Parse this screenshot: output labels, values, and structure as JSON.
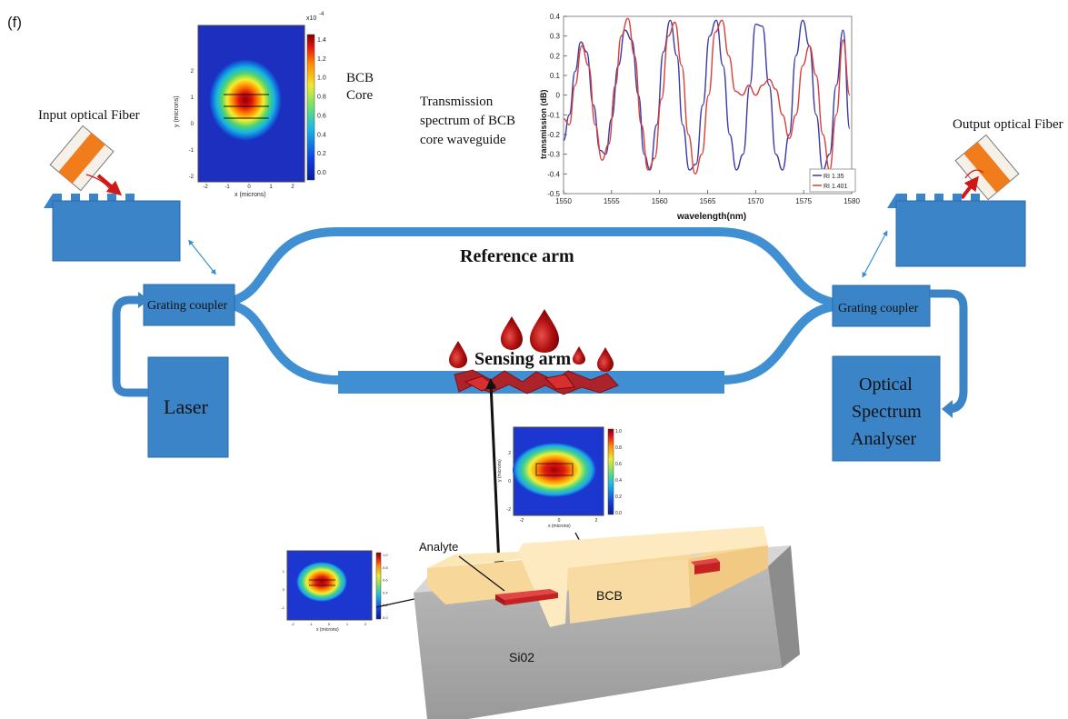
{
  "panel_label": "(f)",
  "labels": {
    "input_fiber": "Input optical Fiber",
    "output_fiber": "Output optical Fiber",
    "bcb_core": [
      "BCB",
      "Core"
    ],
    "spectrum_caption": [
      "Transmission",
      "spectrum of BCB",
      "core waveguide"
    ],
    "reference_arm": "Reference arm",
    "sensing_arm": "Sensing arm",
    "grating_left": "Grating coupler",
    "grating_right": "Grating coupler",
    "laser": "Laser",
    "osa": [
      "Optical",
      "Spectrum",
      "Analyser"
    ],
    "analyte": "Analyte",
    "bcb": "BCB",
    "sio2": "Si02"
  },
  "mode_plot_top": {
    "xlabel": "x (microns)",
    "ylabel": "y (microns)",
    "xticks": [
      "-2",
      "-1",
      "0",
      "1",
      "2"
    ],
    "yticks": [
      "2",
      "1",
      "0",
      "-1",
      "-2"
    ],
    "colorbar_exponent": "x10",
    "colorbar_power": "-4",
    "colorbar_ticks": [
      "1.4",
      "1.2",
      "1.0",
      "0.8",
      "0.6",
      "0.4",
      "0.2",
      "0.0"
    ]
  },
  "mode_plot_mid": {
    "xlabel": "x (microns)",
    "ylabel": "y (microns)",
    "xticks": [
      "-2",
      "0",
      "2"
    ],
    "yticks": [
      "2",
      "0",
      "-2"
    ],
    "colorbar_ticks": [
      "1.0",
      "0.8",
      "0.6",
      "0.4",
      "0.2",
      "0.0"
    ]
  },
  "mode_plot_small": {
    "xlabel": "x (microns)",
    "xticks": [
      "-2",
      "-1",
      "0",
      "1",
      "2"
    ],
    "yticks": [
      "1",
      "0",
      "-1"
    ],
    "colorbar_ticks": [
      "1.0",
      "0.8",
      "0.6",
      "0.4",
      "0.2",
      "0.0"
    ]
  },
  "chart_data": {
    "type": "line",
    "title": "",
    "xlabel": "wavelength(nm)",
    "ylabel": "transmission (dB)",
    "xlim": [
      1550,
      1580
    ],
    "ylim": [
      -0.5,
      0.4
    ],
    "xticks": [
      1550,
      1555,
      1560,
      1565,
      1570,
      1575,
      1580
    ],
    "yticks": [
      0.4,
      0.3,
      0.2,
      0.1,
      0,
      -0.1,
      -0.2,
      -0.3,
      -0.4,
      -0.5
    ],
    "grid": false,
    "legend_position": "bottom-right",
    "series": [
      {
        "name": "RI 1.35",
        "color": "#3a3aa8",
        "x": [
          1550,
          1550.6,
          1551.2,
          1551.8,
          1552.4,
          1553.1,
          1553.8,
          1554.4,
          1555.0,
          1555.7,
          1556.4,
          1557.1,
          1557.8,
          1558.4,
          1559.0,
          1559.7,
          1560.4,
          1561.1,
          1561.8,
          1562.4,
          1563.1,
          1563.8,
          1564.5,
          1565.2,
          1565.9,
          1566.6,
          1567.3,
          1568.0,
          1568.7,
          1569.4,
          1570.0,
          1570.7,
          1571.4,
          1572.1,
          1572.8,
          1573.5,
          1574.2,
          1574.9,
          1575.6,
          1576.3,
          1577.0,
          1577.7,
          1578.4,
          1579.1,
          1579.8
        ],
        "y": [
          -0.23,
          -0.1,
          0.12,
          0.27,
          0.22,
          -0.05,
          -0.28,
          -0.3,
          -0.12,
          0.15,
          0.33,
          0.28,
          0.0,
          -0.3,
          -0.38,
          -0.15,
          0.22,
          0.38,
          0.2,
          -0.15,
          -0.38,
          -0.35,
          -0.05,
          0.3,
          0.38,
          0.15,
          -0.2,
          -0.38,
          -0.3,
          0.05,
          0.36,
          0.35,
          0.05,
          -0.3,
          -0.38,
          -0.2,
          0.2,
          0.38,
          0.25,
          -0.1,
          -0.38,
          -0.3,
          0.05,
          0.33,
          -0.17
        ]
      },
      {
        "name": "RI 1.401",
        "color": "#d8403a",
        "x": [
          1550,
          1550.6,
          1551.2,
          1551.9,
          1552.6,
          1553.3,
          1554.0,
          1554.7,
          1555.4,
          1556.0,
          1556.7,
          1557.4,
          1558.1,
          1558.8,
          1559.5,
          1560.2,
          1560.9,
          1561.6,
          1562.3,
          1563.0,
          1563.7,
          1564.4,
          1565.1,
          1565.8,
          1566.5,
          1567.2,
          1567.9,
          1568.6,
          1569.3,
          1570.0,
          1570.7,
          1571.4,
          1572.1,
          1572.8,
          1573.5,
          1574.2,
          1574.9,
          1575.6,
          1576.3,
          1577.0,
          1577.7,
          1578.4,
          1579.1,
          1579.8
        ],
        "y": [
          -0.12,
          -0.15,
          0.05,
          0.25,
          0.15,
          -0.15,
          -0.33,
          -0.25,
          0.05,
          0.3,
          0.39,
          0.2,
          -0.15,
          -0.38,
          -0.32,
          -0.02,
          0.3,
          0.37,
          0.15,
          -0.2,
          -0.4,
          -0.3,
          0.0,
          0.32,
          0.38,
          0.2,
          0.02,
          0.0,
          0.05,
          0.0,
          0.05,
          0.08,
          0.03,
          -0.1,
          -0.22,
          -0.1,
          0.15,
          0.25,
          0.1,
          -0.2,
          -0.38,
          -0.1,
          0.28,
          0.0
        ]
      }
    ]
  }
}
